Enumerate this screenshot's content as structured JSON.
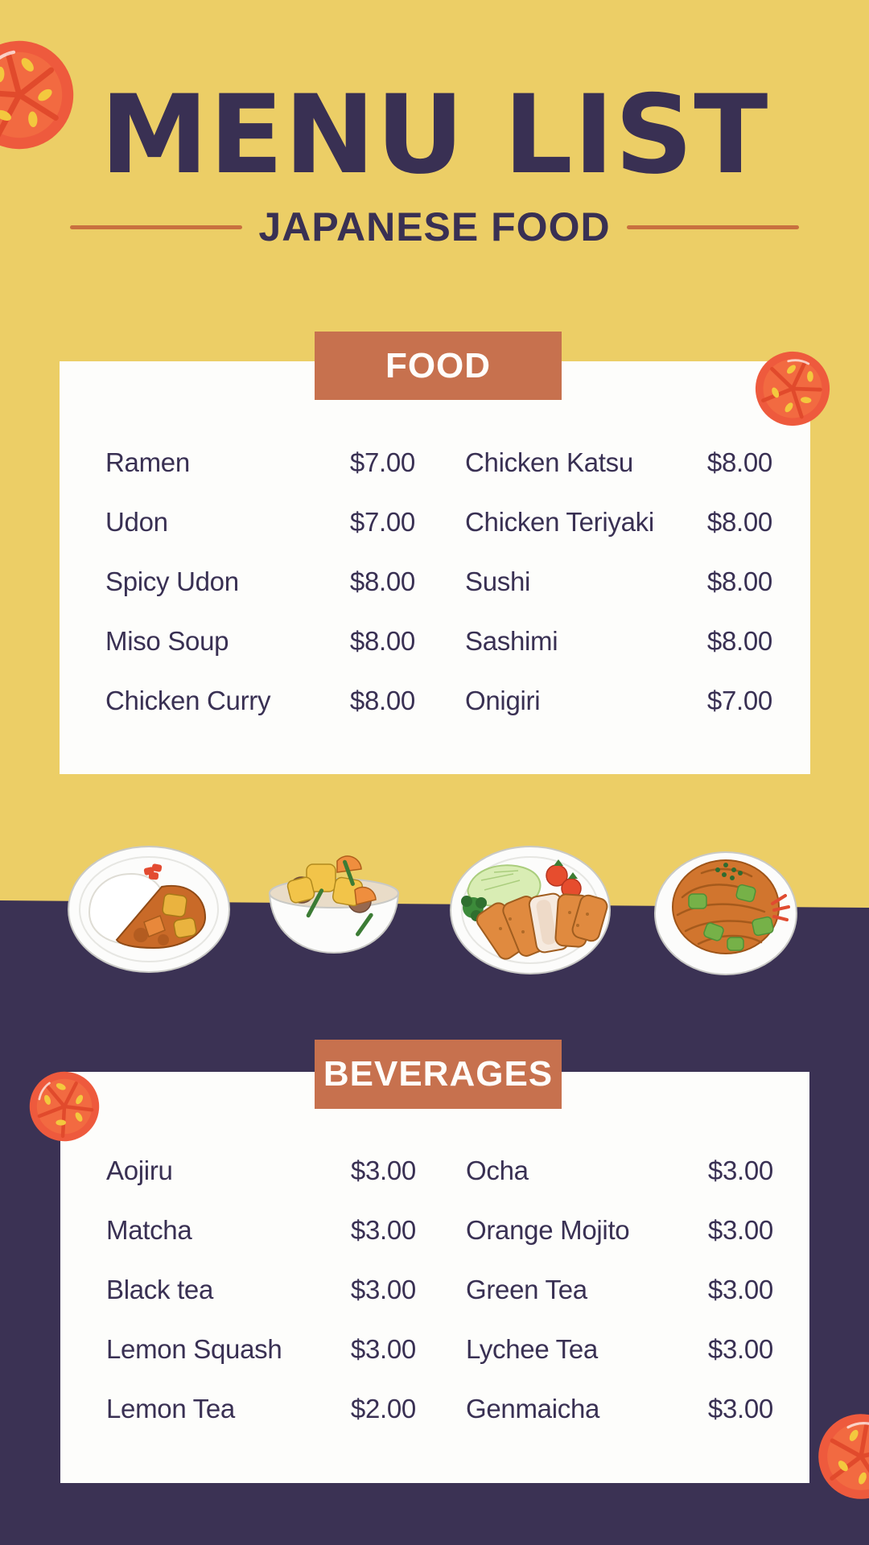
{
  "header": {
    "title": "MENU LIST",
    "subtitle": "JAPANESE FOOD"
  },
  "sections": [
    {
      "id": "food",
      "heading": "FOOD",
      "rows": [
        {
          "left": {
            "name": "Ramen",
            "price": "$7.00"
          },
          "right": {
            "name": "Chicken Katsu",
            "price": "$8.00"
          }
        },
        {
          "left": {
            "name": "Udon",
            "price": "$7.00"
          },
          "right": {
            "name": "Chicken Teriyaki",
            "price": "$8.00"
          }
        },
        {
          "left": {
            "name": "Spicy Udon",
            "price": "$8.00"
          },
          "right": {
            "name": "Sushi",
            "price": "$8.00"
          }
        },
        {
          "left": {
            "name": "Miso Soup",
            "price": "$8.00"
          },
          "right": {
            "name": "Sashimi",
            "price": "$8.00"
          }
        },
        {
          "left": {
            "name": "Chicken Curry",
            "price": "$8.00"
          },
          "right": {
            "name": "Onigiri",
            "price": "$7.00"
          }
        }
      ]
    },
    {
      "id": "beverages",
      "heading": "BEVERAGES",
      "rows": [
        {
          "left": {
            "name": "Aojiru",
            "price": "$3.00"
          },
          "right": {
            "name": "Ocha",
            "price": "$3.00"
          }
        },
        {
          "left": {
            "name": "Matcha",
            "price": "$3.00"
          },
          "right": {
            "name": "Orange Mojito",
            "price": "$3.00"
          }
        },
        {
          "left": {
            "name": "Black tea",
            "price": "$3.00"
          },
          "right": {
            "name": "Green Tea",
            "price": "$3.00"
          }
        },
        {
          "left": {
            "name": "Lemon Squash",
            "price": "$3.00"
          },
          "right": {
            "name": "Lychee Tea",
            "price": "$3.00"
          }
        },
        {
          "left": {
            "name": "Lemon Tea",
            "price": "$2.00"
          },
          "right": {
            "name": "Genmaicha",
            "price": "$3.00"
          }
        }
      ]
    }
  ],
  "decorations": {
    "tomato_slices": [
      "top-left",
      "food-card-top-right",
      "beverages-card-top-left",
      "bottom-right"
    ],
    "plates": [
      "curry-rice",
      "nikujaga-stew-bowl",
      "chicken-katsu",
      "yakisoba-noodles"
    ]
  },
  "colors": {
    "background_top": "#ecce66",
    "background_bottom": "#3b3254",
    "heading_band": "#c7714e",
    "accent_line": "#c8703f",
    "text": "#393053",
    "card": "#fdfdfb",
    "band_text": "#fffdfa",
    "tomato_red": "#ee5a3d",
    "tomato_pulp": "#f26a41",
    "tomato_seed": "#f3c83e"
  }
}
